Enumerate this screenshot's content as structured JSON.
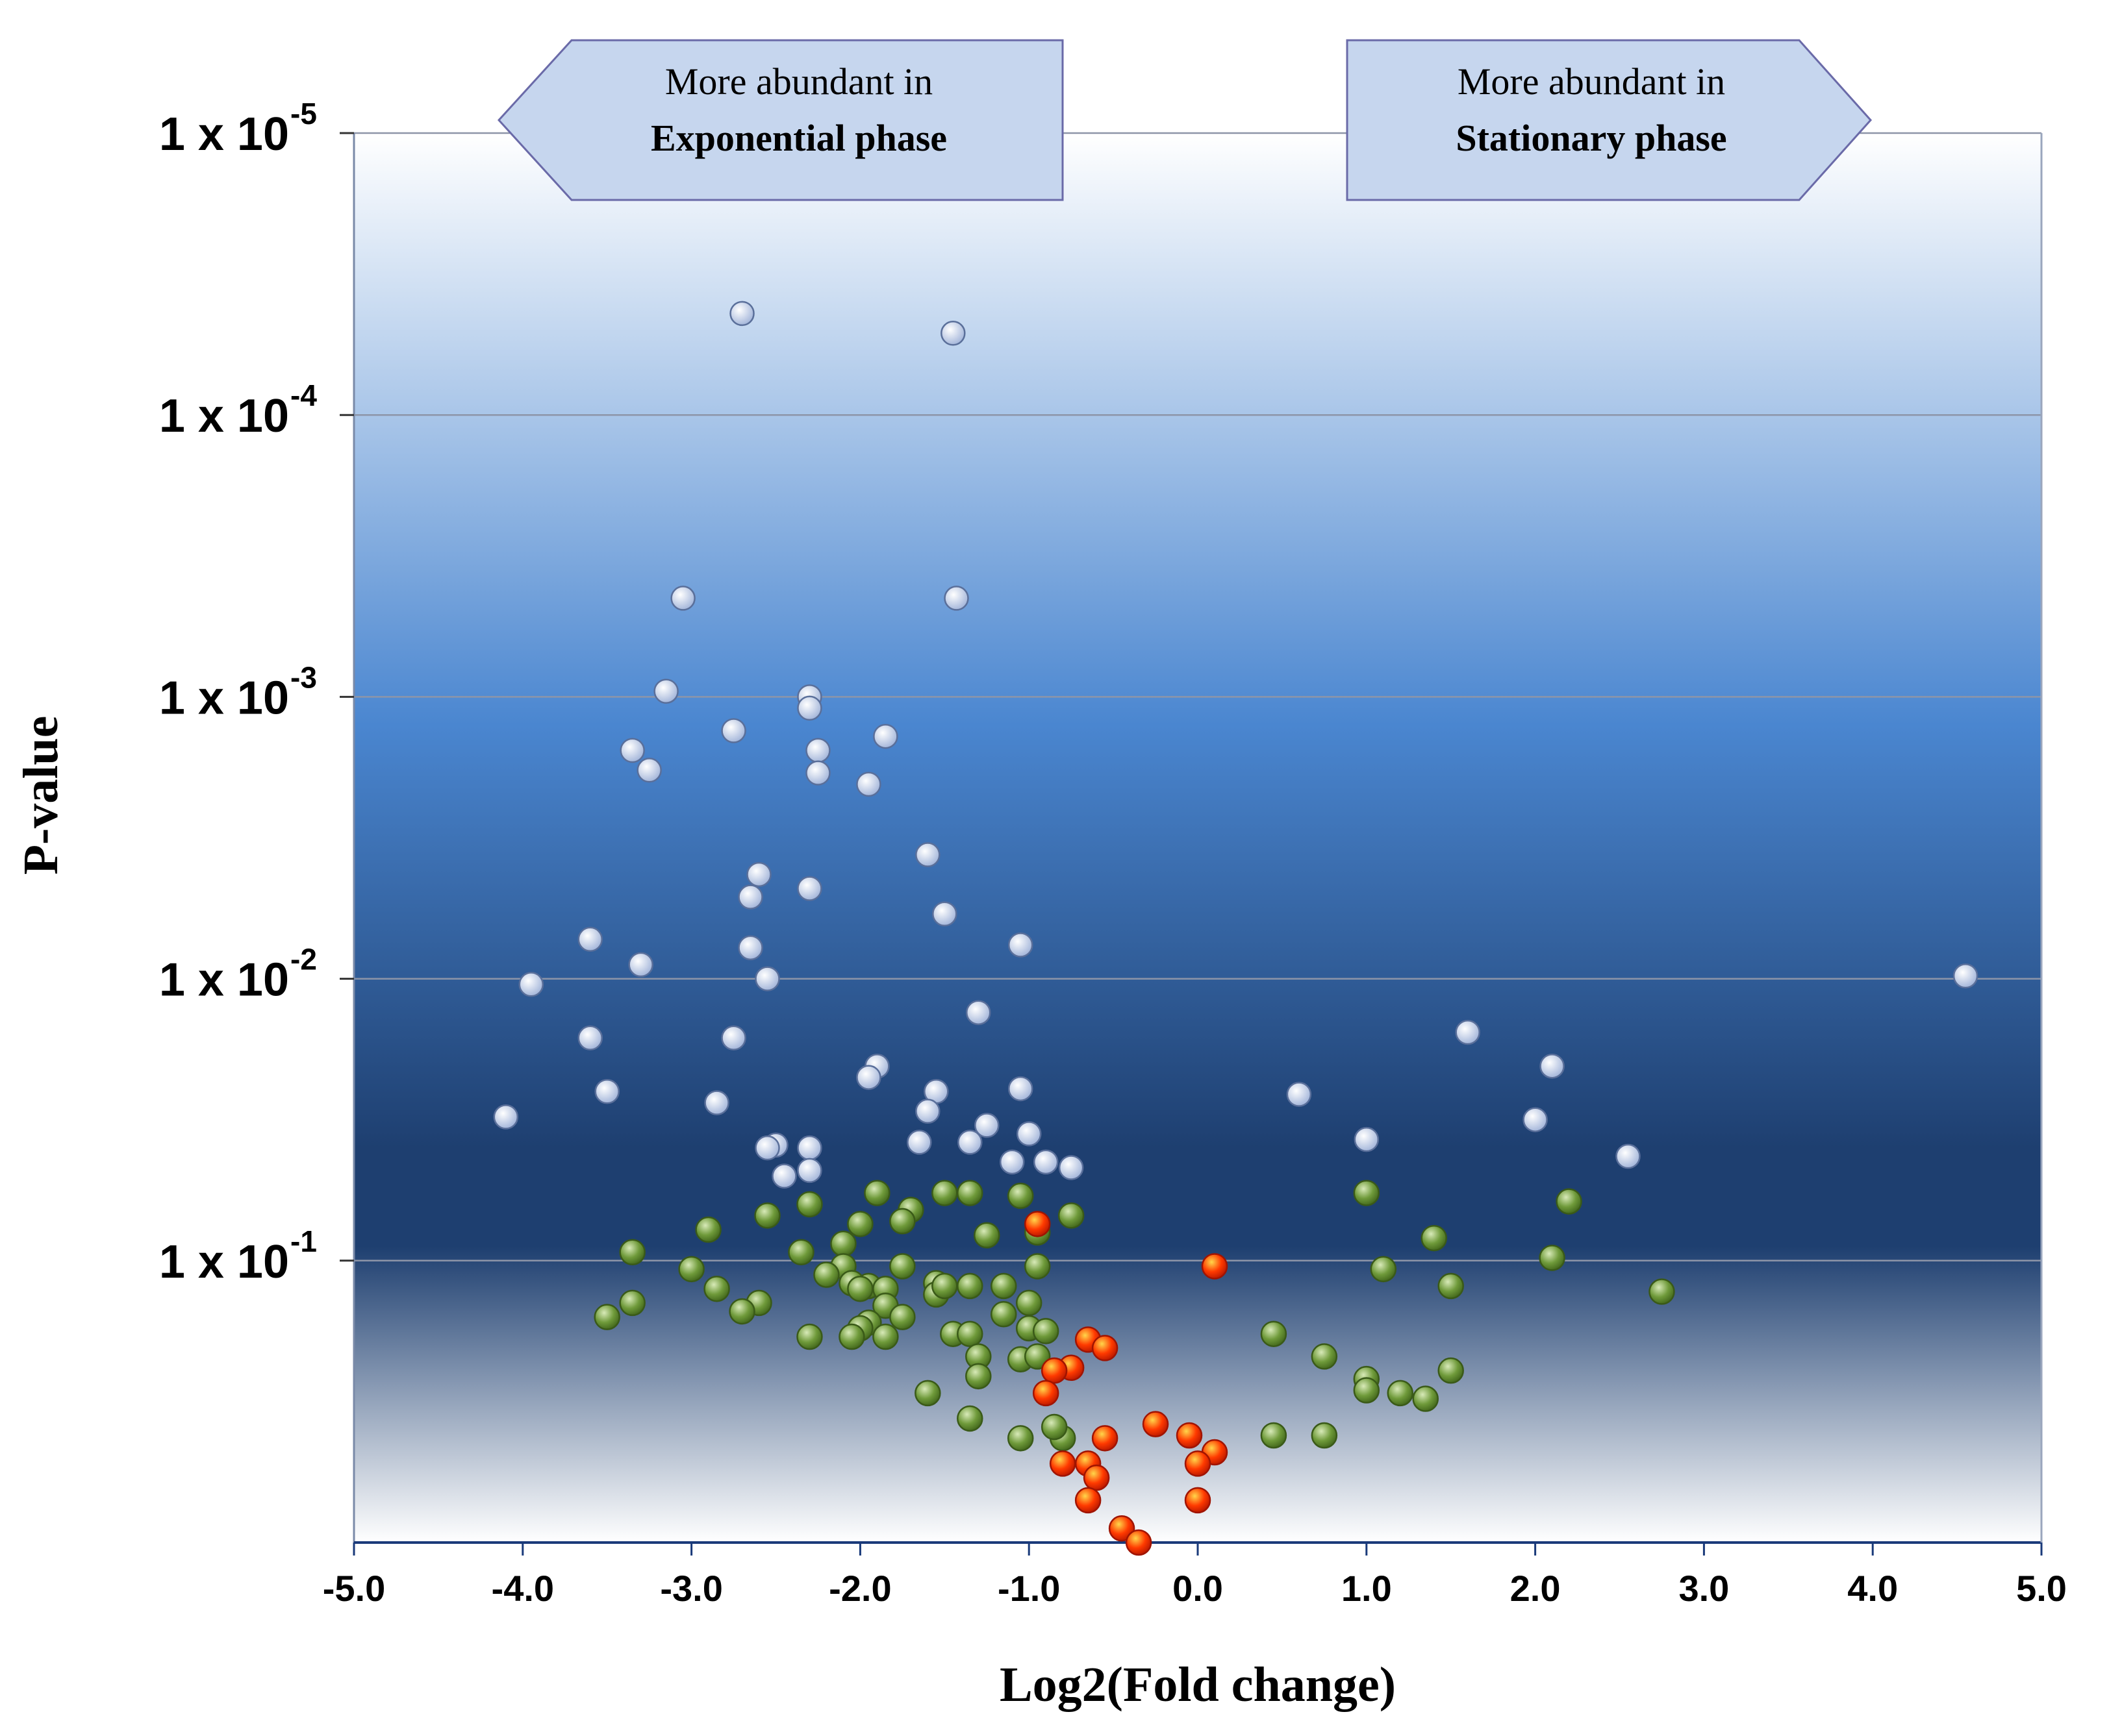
{
  "chart_data": {
    "type": "scatter",
    "title": "",
    "xlabel": "Log2(Fold change)",
    "ylabel": "P-value",
    "xlim": [
      -5.0,
      5.0
    ],
    "ylim_log10": [
      -5,
      0
    ],
    "x_ticks": [
      "-5.0",
      "-4.0",
      "-3.0",
      "-2.0",
      "-1.0",
      "0.0",
      "1.0",
      "2.0",
      "3.0",
      "4.0",
      "5.0"
    ],
    "y_ticks": [
      {
        "base": "1 x 10",
        "exp": "-5",
        "log10": -5
      },
      {
        "base": "1 x 10",
        "exp": "-4",
        "log10": -4
      },
      {
        "base": "1 x 10",
        "exp": "-3",
        "log10": -3
      },
      {
        "base": "1 x 10",
        "exp": "-2",
        "log10": -2
      },
      {
        "base": "1 x 10",
        "exp": "-1",
        "log10": -1
      }
    ],
    "annotations": {
      "left": {
        "line1": "More abundant in",
        "line2": "Exponential phase",
        "direction": "left"
      },
      "right": {
        "line1": "More abundant in",
        "line2": "Stationary phase",
        "direction": "right"
      }
    },
    "colors": {
      "blue_points": "#dfe6f5",
      "green_points": "#6f9a3a",
      "red_points": "#ff3a00",
      "callout_fill": "#c6d6ee",
      "gradient_top": "#ffffff",
      "gradient_mid": "#4a86d0",
      "gradient_dark": "#1e3f70"
    },
    "series": [
      {
        "name": "blue",
        "points": [
          [
            -2.7,
            4.36
          ],
          [
            -1.45,
            4.29
          ],
          [
            -3.05,
            3.35
          ],
          [
            -1.43,
            3.35
          ],
          [
            -3.15,
            3.02
          ],
          [
            -2.3,
            3.0
          ],
          [
            -2.3,
            2.96
          ],
          [
            -2.75,
            2.88
          ],
          [
            -1.85,
            2.86
          ],
          [
            -3.35,
            2.81
          ],
          [
            -2.25,
            2.81
          ],
          [
            -3.25,
            2.74
          ],
          [
            -2.25,
            2.73
          ],
          [
            -1.95,
            2.69
          ],
          [
            -1.6,
            2.44
          ],
          [
            -2.6,
            2.37
          ],
          [
            -2.3,
            2.32
          ],
          [
            -2.65,
            2.29
          ],
          [
            -1.5,
            2.23
          ],
          [
            -3.6,
            2.14
          ],
          [
            -2.65,
            2.11
          ],
          [
            -1.05,
            2.12
          ],
          [
            -3.3,
            2.05
          ],
          [
            -2.55,
            2.0
          ],
          [
            -3.95,
            1.98
          ],
          [
            4.55,
            2.01
          ],
          [
            -1.3,
            1.88
          ],
          [
            1.6,
            1.81
          ],
          [
            -3.6,
            1.79
          ],
          [
            -2.75,
            1.79
          ],
          [
            2.1,
            1.69
          ],
          [
            -1.9,
            1.69
          ],
          [
            -1.95,
            1.65
          ],
          [
            -1.55,
            1.6
          ],
          [
            -1.05,
            1.61
          ],
          [
            -3.5,
            1.6
          ],
          [
            0.6,
            1.59
          ],
          [
            -2.85,
            1.56
          ],
          [
            -1.6,
            1.53
          ],
          [
            -4.1,
            1.51
          ],
          [
            -1.25,
            1.48
          ],
          [
            2.0,
            1.5
          ],
          [
            -1.0,
            1.45
          ],
          [
            1.0,
            1.43
          ],
          [
            -2.5,
            1.41
          ],
          [
            -2.3,
            1.4
          ],
          [
            -2.55,
            1.4
          ],
          [
            -1.65,
            1.42
          ],
          [
            -1.35,
            1.42
          ],
          [
            -1.1,
            1.35
          ],
          [
            -0.9,
            1.35
          ],
          [
            -2.3,
            1.32
          ],
          [
            -2.45,
            1.3
          ],
          [
            -0.75,
            1.33
          ],
          [
            2.55,
            1.37
          ]
        ]
      },
      {
        "name": "green",
        "points": [
          [
            -1.5,
            1.24
          ],
          [
            -1.05,
            1.23
          ],
          [
            -2.3,
            1.2
          ],
          [
            -1.9,
            1.24
          ],
          [
            -1.35,
            1.24
          ],
          [
            -2.55,
            1.16
          ],
          [
            -1.7,
            1.18
          ],
          [
            -1.75,
            1.14
          ],
          [
            -2.9,
            1.11
          ],
          [
            -2.0,
            1.13
          ],
          [
            -1.25,
            1.09
          ],
          [
            -0.75,
            1.16
          ],
          [
            -0.95,
            1.1
          ],
          [
            1.0,
            1.24
          ],
          [
            2.2,
            1.21
          ],
          [
            1.4,
            1.08
          ],
          [
            -3.35,
            1.03
          ],
          [
            -2.35,
            1.03
          ],
          [
            -2.1,
            1.06
          ],
          [
            -3.0,
            0.97
          ],
          [
            -2.1,
            0.98
          ],
          [
            -2.2,
            0.95
          ],
          [
            -1.75,
            0.98
          ],
          [
            -0.95,
            0.98
          ],
          [
            2.1,
            1.01
          ],
          [
            1.1,
            0.97
          ],
          [
            -2.85,
            0.9
          ],
          [
            -2.05,
            0.92
          ],
          [
            -1.95,
            0.91
          ],
          [
            -1.85,
            0.9
          ],
          [
            -1.55,
            0.92
          ],
          [
            -1.15,
            0.91
          ],
          [
            -1.35,
            0.91
          ],
          [
            -3.35,
            0.85
          ],
          [
            -2.6,
            0.85
          ],
          [
            -2.0,
            0.9
          ],
          [
            -1.85,
            0.84
          ],
          [
            -1.55,
            0.88
          ],
          [
            -1.5,
            0.91
          ],
          [
            -1.0,
            0.85
          ],
          [
            1.5,
            0.91
          ],
          [
            2.75,
            0.89
          ],
          [
            -3.5,
            0.8
          ],
          [
            -2.7,
            0.82
          ],
          [
            -1.95,
            0.78
          ],
          [
            -1.75,
            0.8
          ],
          [
            -1.15,
            0.81
          ],
          [
            -1.0,
            0.76
          ],
          [
            -0.9,
            0.75
          ],
          [
            -1.85,
            0.73
          ],
          [
            -2.0,
            0.76
          ],
          [
            -2.3,
            0.73
          ],
          [
            -2.05,
            0.73
          ],
          [
            -1.45,
            0.74
          ],
          [
            -1.35,
            0.74
          ],
          [
            0.45,
            0.74
          ],
          [
            -1.3,
            0.66
          ],
          [
            -1.05,
            0.65
          ],
          [
            -0.95,
            0.66
          ],
          [
            0.75,
            0.66
          ],
          [
            1.5,
            0.61
          ],
          [
            1.0,
            0.58
          ],
          [
            -1.6,
            0.53
          ],
          [
            -1.3,
            0.59
          ],
          [
            1.2,
            0.53
          ],
          [
            1.35,
            0.51
          ],
          [
            1.0,
            0.54
          ],
          [
            -1.35,
            0.44
          ],
          [
            -1.05,
            0.37
          ],
          [
            -0.8,
            0.37
          ],
          [
            -0.85,
            0.41
          ],
          [
            0.45,
            0.38
          ],
          [
            0.75,
            0.38
          ]
        ]
      },
      {
        "name": "red",
        "points": [
          [
            -0.95,
            1.13
          ],
          [
            0.1,
            0.98
          ],
          [
            -0.65,
            0.72
          ],
          [
            -0.55,
            0.69
          ],
          [
            -0.75,
            0.62
          ],
          [
            -0.85,
            0.61
          ],
          [
            -0.9,
            0.53
          ],
          [
            -0.25,
            0.42
          ],
          [
            -0.55,
            0.37
          ],
          [
            -0.05,
            0.38
          ],
          [
            0.1,
            0.32
          ],
          [
            0.0,
            0.28
          ],
          [
            -0.65,
            0.28
          ],
          [
            -0.8,
            0.28
          ],
          [
            -0.6,
            0.23
          ],
          [
            -0.65,
            0.15
          ],
          [
            0.0,
            0.15
          ],
          [
            -0.45,
            0.05
          ],
          [
            -0.35,
            0.0
          ]
        ]
      }
    ]
  }
}
